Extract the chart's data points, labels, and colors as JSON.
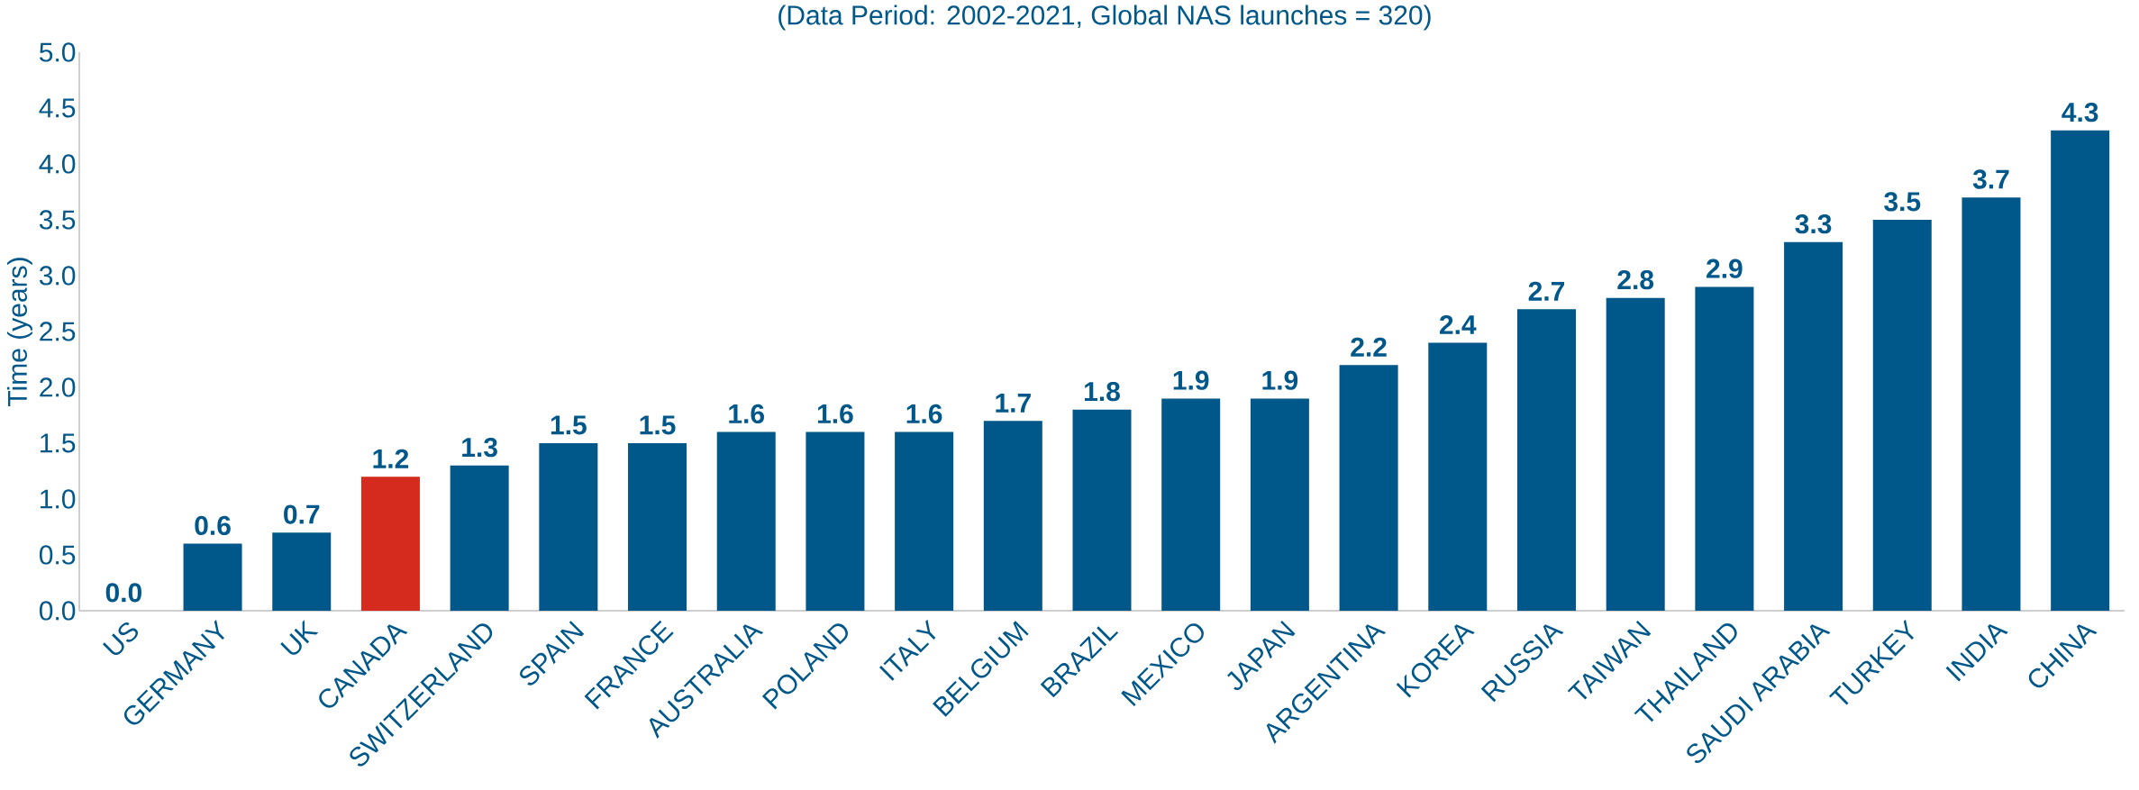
{
  "chart_data": {
    "type": "bar",
    "title": "(Data Period: 2002-2021, Global NAS launches = 320)",
    "ylabel": "Time (years)",
    "categories": [
      "US",
      "GERMANY",
      "UK",
      "CANADA",
      "SWITZERLAND",
      "SPAIN",
      "FRANCE",
      "AUSTRALIA",
      "POLAND",
      "ITALY",
      "BELGIUM",
      "BRAZIL",
      "MEXICO",
      "JAPAN",
      "ARGENTINA",
      "KOREA",
      "RUSSIA",
      "TAIWAN",
      "THAILAND",
      "SAUDI ARABIA",
      "TURKEY",
      "INDIA",
      "CHINA"
    ],
    "values": [
      0.0,
      0.6,
      0.7,
      1.2,
      1.3,
      1.5,
      1.5,
      1.6,
      1.6,
      1.6,
      1.7,
      1.8,
      1.9,
      1.9,
      2.2,
      2.4,
      2.7,
      2.8,
      2.9,
      3.3,
      3.5,
      3.7,
      4.3
    ],
    "colors": [
      "#00578a",
      "#00578a",
      "#00578a",
      "#d52b1e",
      "#00578a",
      "#00578a",
      "#00578a",
      "#00578a",
      "#00578a",
      "#00578a",
      "#00578a",
      "#00578a",
      "#00578a",
      "#00578a",
      "#00578a",
      "#00578a",
      "#00578a",
      "#00578a",
      "#00578a",
      "#00578a",
      "#00578a",
      "#00578a",
      "#00578a"
    ],
    "value_labels": [
      "0.0",
      "0.6",
      "0.7",
      "1.2",
      "1.3",
      "1.5",
      "1.5",
      "1.6",
      "1.6",
      "1.6",
      "1.7",
      "1.8",
      "1.9",
      "1.9",
      "2.2",
      "2.4",
      "2.7",
      "2.8",
      "2.9",
      "3.3",
      "3.5",
      "3.7",
      "4.3"
    ],
    "ylim": [
      0,
      5
    ],
    "yticks": [
      {
        "value": 0,
        "label": "0.0"
      },
      {
        "value": 0.5,
        "label": "0.5"
      },
      {
        "value": 1,
        "label": "1.0"
      },
      {
        "value": 1.5,
        "label": "1.5"
      },
      {
        "value": 2,
        "label": "2.0"
      },
      {
        "value": 2.5,
        "label": "2.5"
      },
      {
        "value": 3,
        "label": "3.0"
      },
      {
        "value": 3.5,
        "label": "3.5"
      },
      {
        "value": 4,
        "label": "4.0"
      },
      {
        "value": 4.5,
        "label": "4.5"
      },
      {
        "value": 5,
        "label": "5.0"
      }
    ],
    "grid": false
  }
}
